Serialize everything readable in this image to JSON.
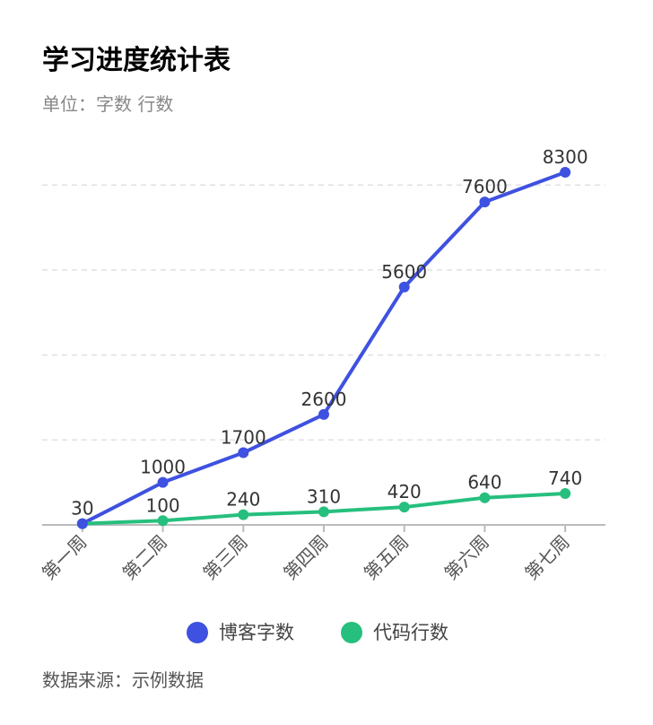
{
  "title": "学习进度统计表",
  "subtitle": "单位：字数 行数",
  "source": "数据来源：示例数据",
  "chart_data": {
    "type": "line",
    "title": "学习进度统计表",
    "categories": [
      "第一周",
      "第二周",
      "第三周",
      "第四周",
      "第五周",
      "第六周",
      "第七周"
    ],
    "series": [
      {
        "name": "博客字数",
        "color": "#3f51e0",
        "values": [
          30,
          1000,
          1700,
          2600,
          5600,
          7600,
          8300
        ]
      },
      {
        "name": "代码行数",
        "color": "#26bf7e",
        "values": [
          30,
          100,
          240,
          310,
          420,
          640,
          740
        ]
      }
    ],
    "value_labels": [
      [
        "30",
        "1000",
        "1700",
        "2600",
        "5600",
        "7600",
        "8300"
      ],
      [
        "",
        "100",
        "240",
        "310",
        "420",
        "640",
        "740"
      ]
    ],
    "ylim": [
      0,
      8300
    ],
    "gridlines": [
      2000,
      4000,
      6000,
      8000
    ],
    "grid": true,
    "legend": "bottom"
  }
}
